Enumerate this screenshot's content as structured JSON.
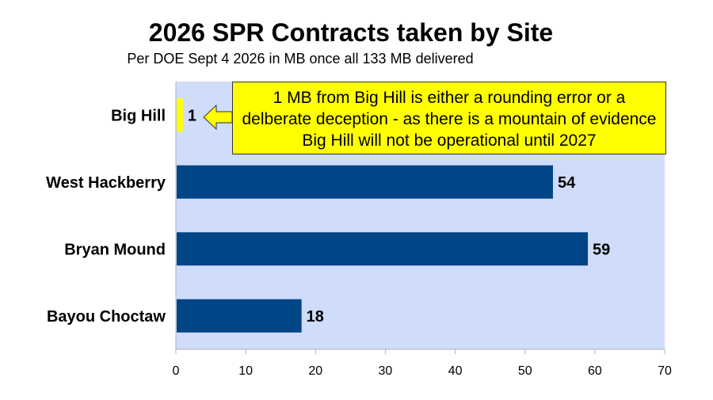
{
  "chart_data": {
    "type": "bar",
    "orientation": "horizontal",
    "title": "2026 SPR Contracts taken by Site",
    "subtitle": "Per DOE Sept 4 2026 in MB once all 133 MB delivered",
    "categories": [
      "Big Hill",
      "West Hackberry",
      "Bryan Mound",
      "Bayou Choctaw"
    ],
    "values": [
      1,
      54,
      59,
      18
    ],
    "data_labels": [
      "1",
      "54",
      "59",
      "18"
    ],
    "bar_colors": [
      "#ffff00",
      "#004586",
      "#004586",
      "#004586"
    ],
    "xlim": [
      0,
      70
    ],
    "x_ticks": [
      0,
      10,
      20,
      30,
      40,
      50,
      60,
      70
    ],
    "grid": false,
    "plot_background": "#cfdcfa",
    "annotation": {
      "text": "1 MB from Big Hill is either a rounding error or a delberate deception - as there is a mountain of evidence Big Hill will not be operational until 2027",
      "background": "#ffff00",
      "points_to": "Big Hill"
    }
  }
}
